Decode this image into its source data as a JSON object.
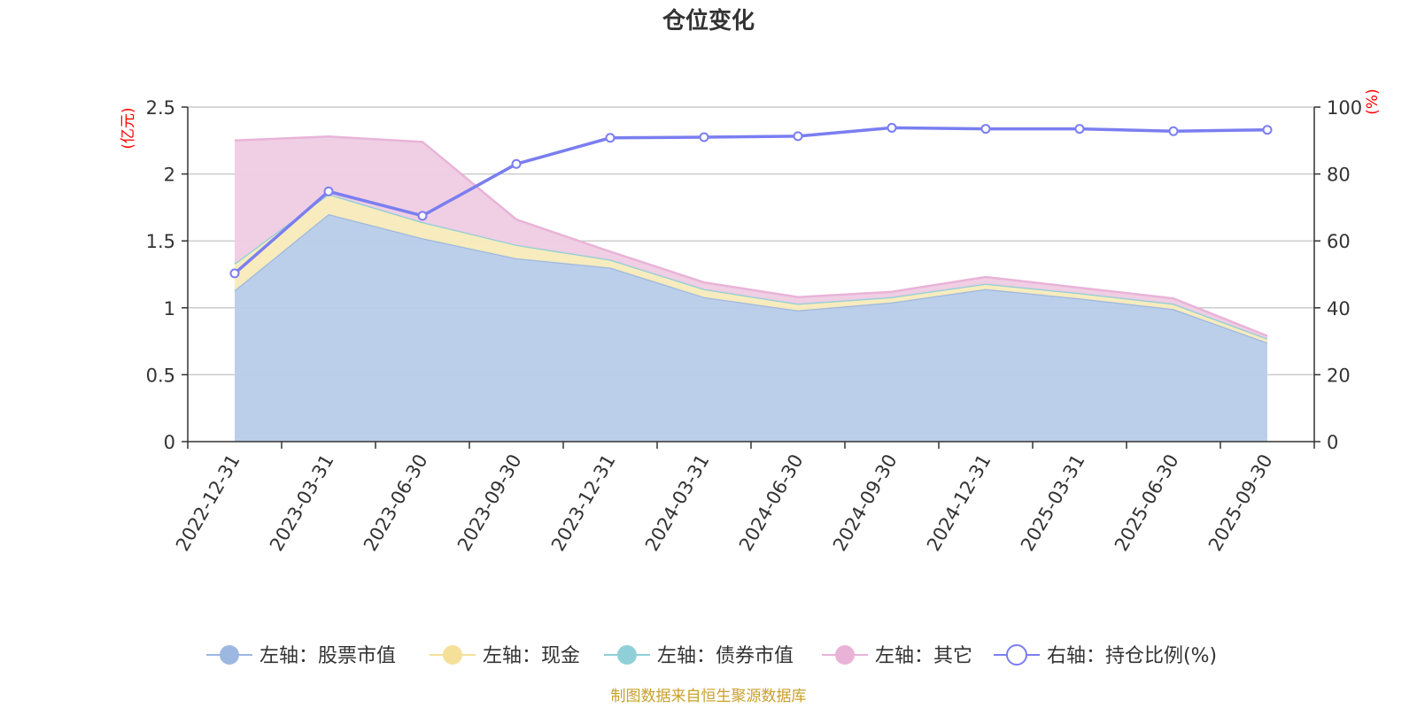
{
  "chart_data": {
    "type": "area",
    "title": "仓位变化",
    "source_note": "制图数据来自恒生聚源数据库",
    "categories": [
      "2022-12-31",
      "2023-03-31",
      "2023-06-30",
      "2023-09-30",
      "2023-12-31",
      "2024-03-31",
      "2024-06-30",
      "2024-09-30",
      "2024-12-31",
      "2025-03-31",
      "2025-06-30",
      "2025-09-30"
    ],
    "left_axis": {
      "unit": "(亿元)",
      "min": 0,
      "max": 2.5,
      "ticks": [
        0,
        0.5,
        1,
        1.5,
        2,
        2.5
      ],
      "tick_labels": [
        "0",
        "0.5",
        "1",
        "1.5",
        "2",
        "2.5"
      ]
    },
    "right_axis": {
      "unit": "(%)",
      "min": 0,
      "max": 100,
      "ticks": [
        0,
        20,
        40,
        60,
        80,
        100
      ],
      "tick_labels": [
        "0",
        "20",
        "40",
        "60",
        "80",
        "100"
      ]
    },
    "stacked_series": [
      {
        "name": "左轴：股票市值",
        "color": "#9db8e0",
        "fill": "#b8cce9",
        "values": [
          1.13,
          1.7,
          1.52,
          1.37,
          1.3,
          1.08,
          0.98,
          1.04,
          1.14,
          1.07,
          0.99,
          0.74
        ]
      },
      {
        "name": "左轴：现金",
        "color": "#f5e09a",
        "fill": "#f8ebbb",
        "values": [
          0.2,
          0.15,
          0.12,
          0.1,
          0.06,
          0.06,
          0.05,
          0.04,
          0.04,
          0.04,
          0.04,
          0.03
        ]
      },
      {
        "name": "左轴：债券市值",
        "color": "#8fd0d8",
        "fill": "#b3e2e6",
        "values": [
          0,
          0,
          0,
          0,
          0,
          0,
          0,
          0,
          0,
          0,
          0,
          0
        ]
      },
      {
        "name": "左轴：其它",
        "color": "#e9b3d8",
        "fill": "#efcce3",
        "values": [
          0.92,
          0.43,
          0.6,
          0.19,
          0.06,
          0.05,
          0.05,
          0.04,
          0.05,
          0.04,
          0.04,
          0.02
        ]
      }
    ],
    "line_series": {
      "name": "右轴：持仓比例(%)",
      "axis": "right",
      "color": "#7a7ef0",
      "values": [
        50.3,
        74.8,
        67.5,
        83.0,
        90.8,
        91.0,
        91.3,
        93.8,
        93.5,
        93.5,
        92.8,
        93.2
      ]
    },
    "legend": [
      {
        "label": "左轴：股票市值",
        "color": "#9db8e0",
        "marker": "filled"
      },
      {
        "label": "左轴：现金",
        "color": "#f5e09a",
        "marker": "filled"
      },
      {
        "label": "左轴：债券市值",
        "color": "#8fd0d8",
        "marker": "filled"
      },
      {
        "label": "左轴：其它",
        "color": "#e9b3d8",
        "marker": "filled"
      },
      {
        "label": "右轴：持仓比例(%)",
        "color": "#7a7ef0",
        "marker": "hollow"
      }
    ],
    "legend_position": "bottom-center",
    "grid": true
  }
}
